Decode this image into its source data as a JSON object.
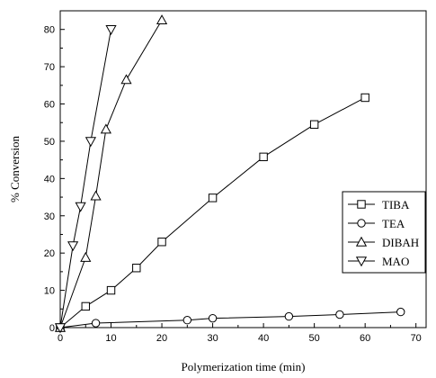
{
  "chart_data": {
    "type": "line",
    "xlabel": "Polymerization time (min)",
    "ylabel": "% Conversion",
    "xlim": [
      0,
      72
    ],
    "ylim": [
      0,
      85
    ],
    "xticks": [
      0,
      10,
      20,
      30,
      40,
      50,
      60,
      70
    ],
    "yticks": [
      0,
      10,
      20,
      30,
      40,
      50,
      60,
      70,
      80
    ],
    "grid": false,
    "legend_position": "right",
    "series": [
      {
        "name": "TIBA",
        "marker": "square",
        "x": [
          0,
          5,
          10,
          15,
          20,
          30,
          40,
          50,
          60
        ],
        "y": [
          0,
          5.7,
          10,
          16,
          23,
          34.8,
          45.8,
          54.5,
          61.7
        ]
      },
      {
        "name": "TEA",
        "marker": "circle",
        "x": [
          0,
          7,
          25,
          30,
          45,
          55,
          67
        ],
        "y": [
          0,
          1.2,
          2,
          2.5,
          3,
          3.5,
          4.2
        ]
      },
      {
        "name": "DIBAH",
        "marker": "triangle-up",
        "x": [
          0,
          5,
          7,
          9,
          13,
          20
        ],
        "y": [
          0,
          18.8,
          35.3,
          53.2,
          66.5,
          82.5
        ]
      },
      {
        "name": "MAO",
        "marker": "triangle-down",
        "x": [
          0,
          2.5,
          4,
          6,
          10
        ],
        "y": [
          0,
          22,
          32.5,
          50,
          80
        ]
      }
    ]
  }
}
